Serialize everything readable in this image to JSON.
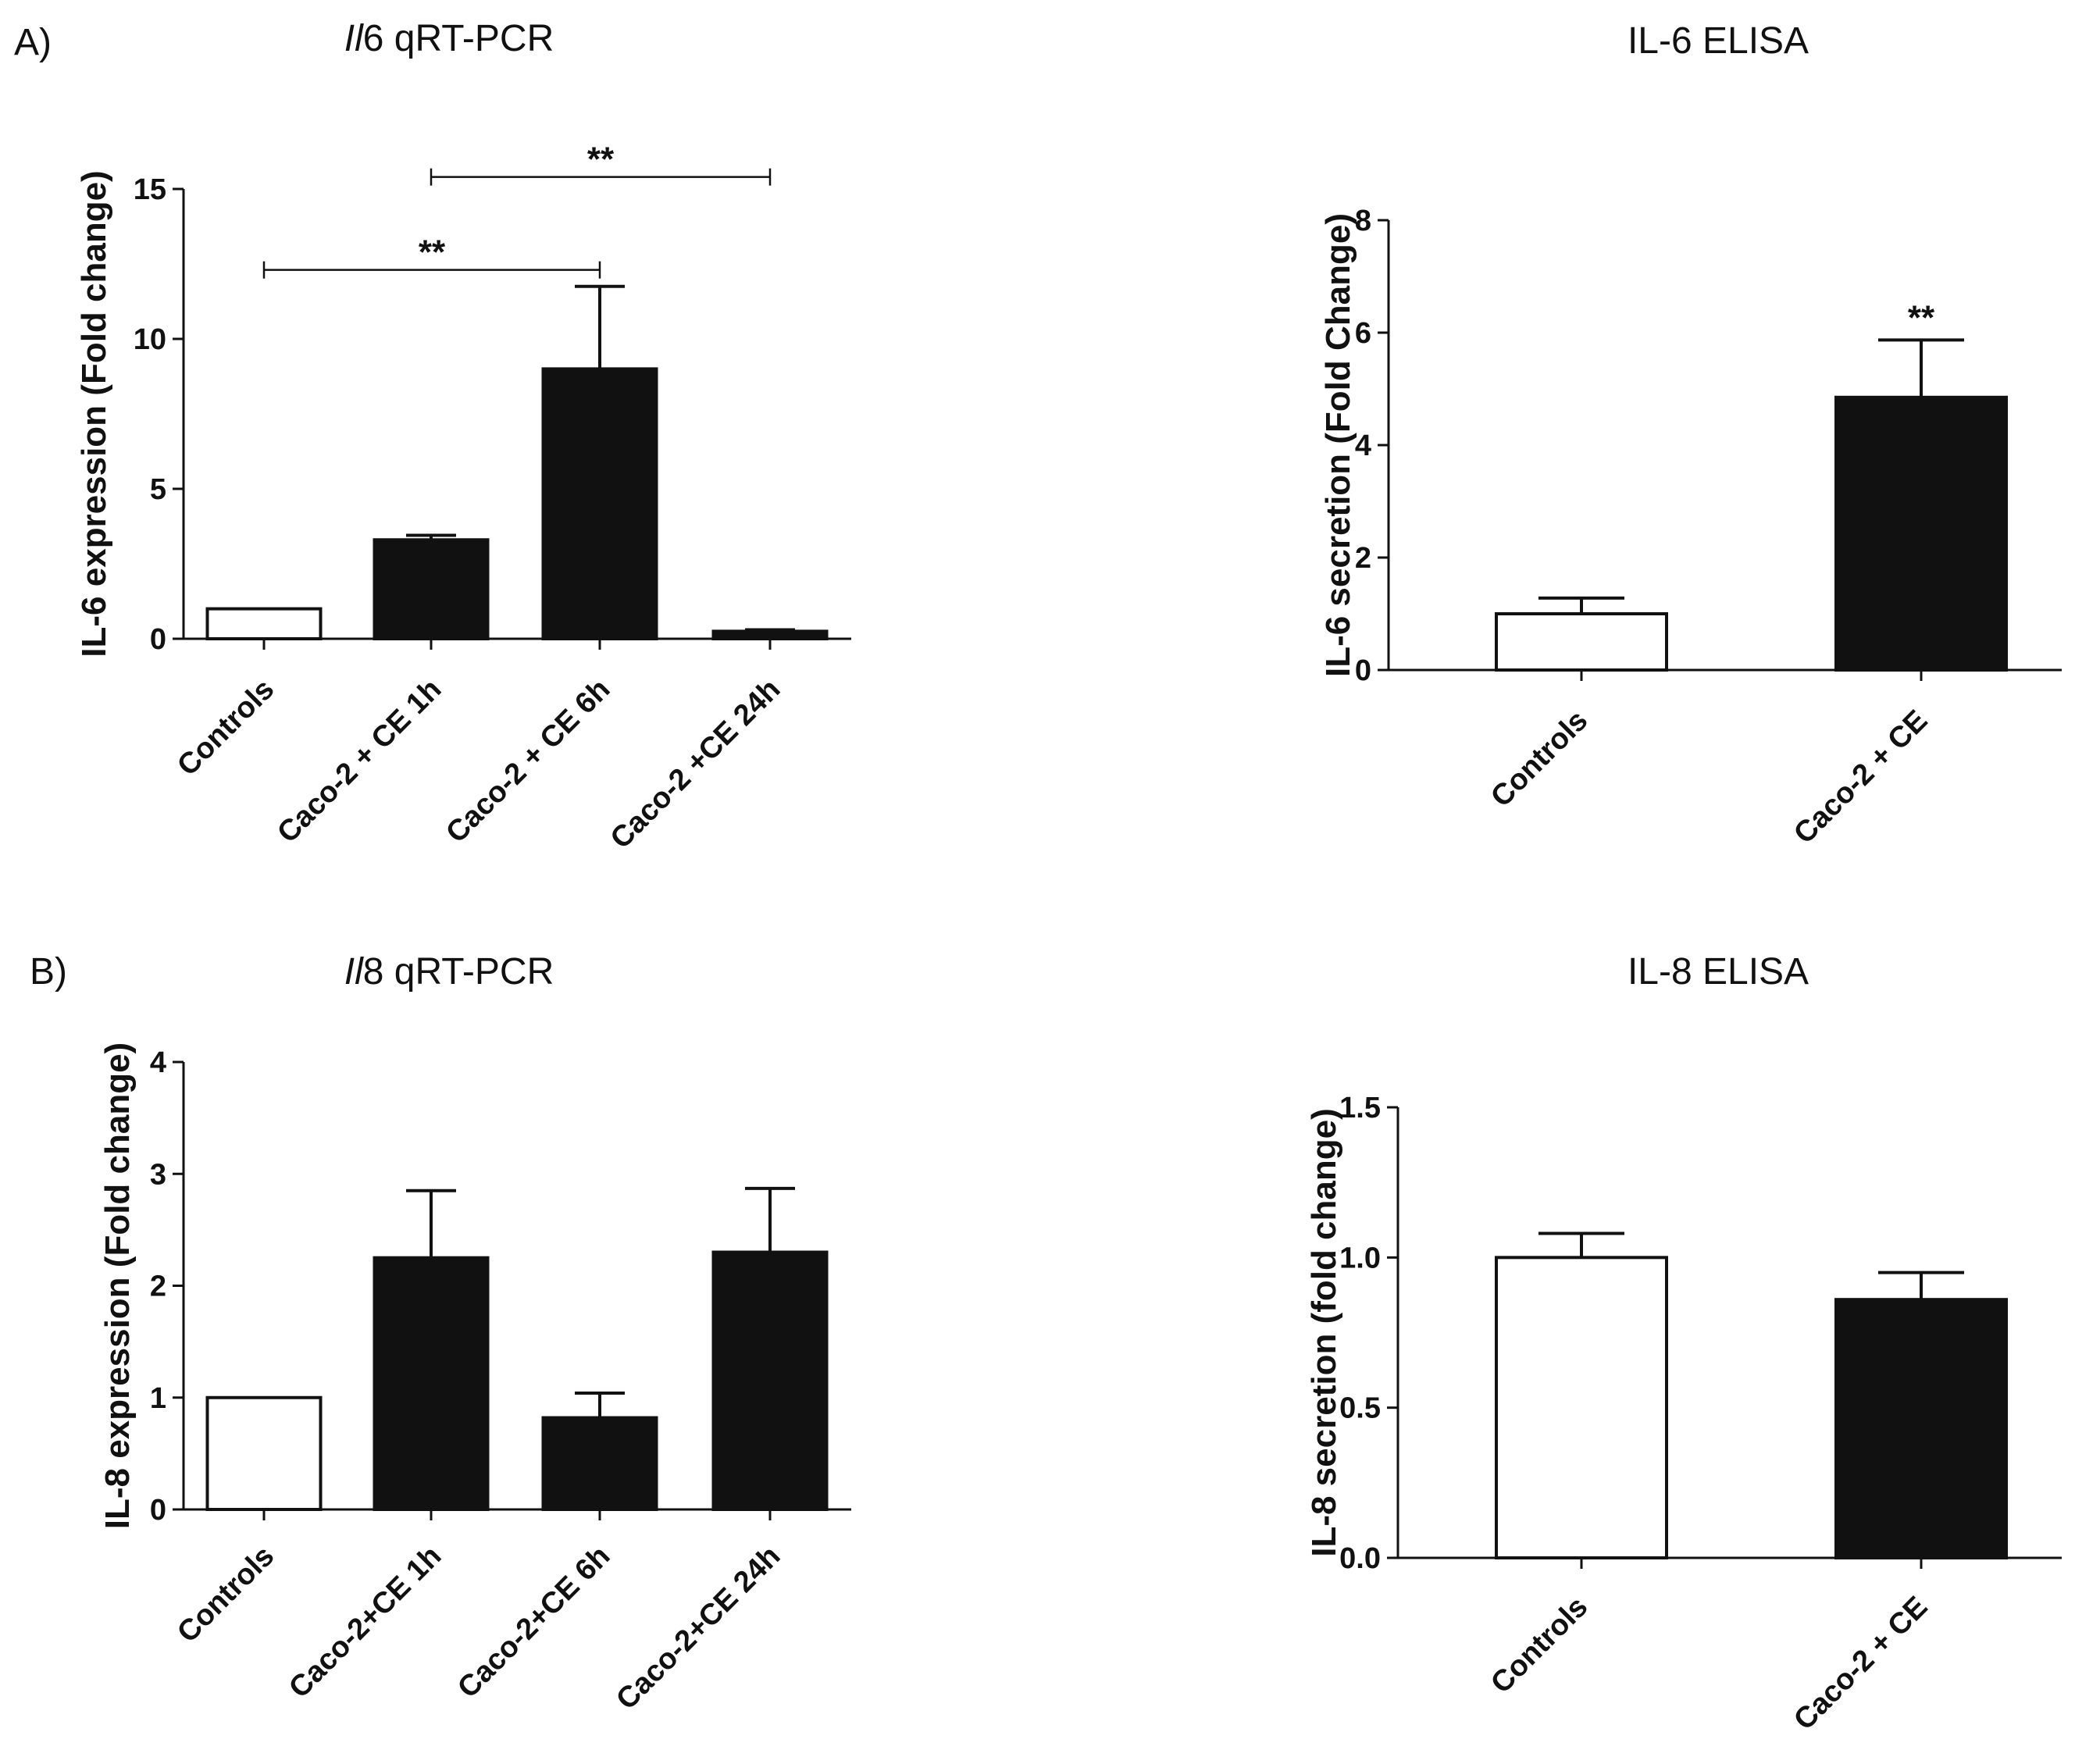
{
  "panels": {
    "a": "A)",
    "b": "B)"
  },
  "colors": {
    "filled": "#111111",
    "open": "#ffffff",
    "stroke": "#111111"
  },
  "chart_data": [
    {
      "id": "il6_qrtpcr",
      "type": "bar",
      "title_italic": "Il",
      "title": "6 qRT-PCR",
      "ylabel": "IL-6 expression (Fold change)",
      "categories": [
        "Controls",
        "Caco-2 + CE 1h",
        "Caco-2 + CE 6h",
        "Caco-2 +CE 24h"
      ],
      "values": [
        1.0,
        3.3,
        9.0,
        0.25
      ],
      "errors": [
        0,
        0.15,
        2.75,
        0.05
      ],
      "fills": [
        "open",
        "filled",
        "filled",
        "filled"
      ],
      "ylim": [
        0,
        15
      ],
      "yticks": [
        "0",
        "5",
        "10",
        "15"
      ],
      "significance": [
        {
          "from": 0,
          "to": 2,
          "label": "**",
          "y": 12.3
        },
        {
          "from": 1,
          "to": 3,
          "label": "**",
          "y": 15.4
        }
      ]
    },
    {
      "id": "il6_elisa",
      "type": "bar",
      "title": "IL-6 ELISA",
      "ylabel": "IL-6 secretion (Fold Change)",
      "categories": [
        "Controls",
        "Caco-2 + CE"
      ],
      "values": [
        1.0,
        4.85
      ],
      "errors": [
        0.28,
        1.02
      ],
      "fills": [
        "open",
        "filled"
      ],
      "ylim": [
        0,
        8
      ],
      "yticks": [
        "0",
        "2",
        "4",
        "6",
        "8"
      ],
      "bar_marks": [
        {
          "index": 1,
          "label": "**"
        }
      ]
    },
    {
      "id": "il8_qrtpcr",
      "type": "bar",
      "title_italic": "Il",
      "title": "8 qRT-PCR",
      "ylabel": "IL-8 expression (Fold change)",
      "categories": [
        "Controls",
        "Caco-2+CE 1h",
        "Caco-2+CE 6h",
        "Caco-2+CE 24h"
      ],
      "values": [
        1.0,
        2.25,
        0.82,
        2.3
      ],
      "errors": [
        0,
        0.6,
        0.22,
        0.57
      ],
      "fills": [
        "open",
        "filled",
        "filled",
        "filled"
      ],
      "ylim": [
        0,
        4
      ],
      "yticks": [
        "0",
        "1",
        "2",
        "3",
        "4"
      ]
    },
    {
      "id": "il8_elisa",
      "type": "bar",
      "title": "IL-8 ELISA",
      "ylabel": "IL-8 secretion (fold change)",
      "categories": [
        "Controls",
        "Caco-2 + CE"
      ],
      "values": [
        1.0,
        0.86
      ],
      "errors": [
        0.08,
        0.09
      ],
      "fills": [
        "open",
        "filled"
      ],
      "ylim": [
        0,
        1.5
      ],
      "yticks": [
        "0.0",
        "0.5",
        "1.0",
        "1.5"
      ]
    }
  ]
}
